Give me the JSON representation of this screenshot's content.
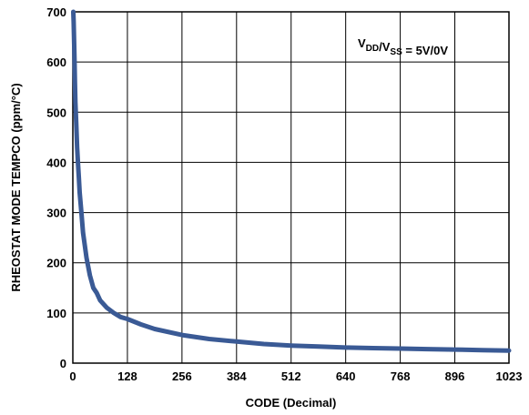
{
  "chart_data": {
    "type": "line",
    "xlabel": "CODE (Decimal)",
    "ylabel": "RHEOSTAT MODE TEMPCO (ppm/°C)",
    "xlim": [
      0,
      1023
    ],
    "ylim": [
      0,
      700
    ],
    "grid": true,
    "x_ticks": [
      0,
      128,
      256,
      384,
      512,
      640,
      768,
      896,
      1023
    ],
    "y_ticks": [
      0,
      100,
      200,
      300,
      400,
      500,
      600,
      700
    ],
    "annotation": {
      "parts": [
        {
          "text": "V",
          "sub": false
        },
        {
          "text": "DD",
          "sub": true
        },
        {
          "text": "/V",
          "sub": false
        },
        {
          "text": "SS",
          "sub": true
        },
        {
          "text": " = 5V/0V",
          "sub": false
        }
      ],
      "position": "top-right"
    },
    "series": [
      {
        "color": "#3a5a95",
        "x": [
          1,
          2,
          3,
          4,
          5,
          6,
          8,
          10,
          12,
          14,
          16,
          20,
          24,
          28,
          32,
          40,
          48,
          56,
          64,
          80,
          96,
          112,
          128,
          160,
          192,
          256,
          320,
          384,
          448,
          512,
          576,
          640,
          704,
          768,
          832,
          896,
          960,
          1023
        ],
        "y": [
          700,
          680,
          640,
          600,
          560,
          520,
          480,
          430,
          400,
          370,
          340,
          300,
          260,
          235,
          210,
          175,
          150,
          140,
          125,
          110,
          100,
          92,
          88,
          77,
          68,
          56,
          48,
          43,
          38,
          35,
          33,
          31,
          30,
          29,
          28,
          27,
          26,
          25
        ]
      }
    ]
  }
}
